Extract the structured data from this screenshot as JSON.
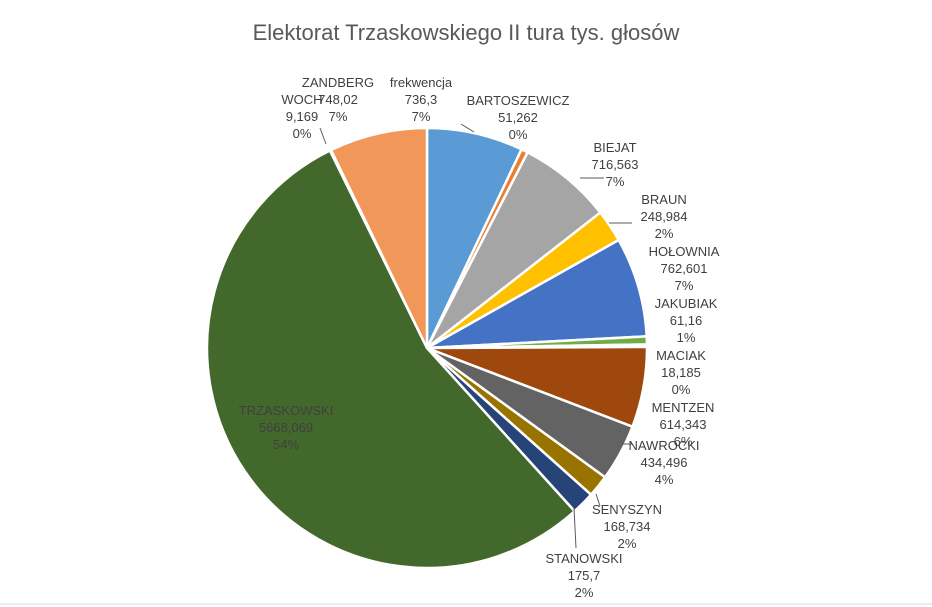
{
  "chart_data": {
    "type": "pie",
    "title": "Elektorat Trzaskowskiego II tura tys. głosów",
    "categories": [
      "frekwencja",
      "BARTOSZEWICZ",
      "BIEJAT",
      "BRAUN",
      "HOŁOWNIA",
      "JAKUBIAK",
      "MACIAK",
      "MENTZEN",
      "NAWROCKI",
      "SENYSZYN",
      "STANOWSKI",
      "TRZASKOWSKI",
      "WOCH",
      "ZANDBERG"
    ],
    "value_labels": [
      "736,3",
      "51,262",
      "716,563",
      "248,984",
      "762,601",
      "61,16",
      "18,185",
      "614,343",
      "434,496",
      "168,734",
      "175,7",
      "5668,069",
      "9,169",
      "748,02"
    ],
    "values": [
      736.3,
      51.262,
      716.563,
      248.984,
      762.601,
      61.16,
      18.185,
      614.343,
      434.496,
      168.734,
      175.7,
      5668.069,
      9.169,
      748.02
    ],
    "percent_labels": [
      "7%",
      "0%",
      "7%",
      "2%",
      "7%",
      "1%",
      "0%",
      "6%",
      "4%",
      "2%",
      "2%",
      "54%",
      "0%",
      "7%"
    ],
    "colors": [
      "#5b9bd5",
      "#ed7d31",
      "#a5a5a5",
      "#ffc000",
      "#4472c4",
      "#70ad47",
      "#9e480e",
      "#9e480e",
      "#636363",
      "#997300",
      "#264478",
      "#43682b",
      "#698ed0",
      "#f1975a"
    ],
    "legend": "none",
    "data_labels": "outside with leader lines"
  }
}
